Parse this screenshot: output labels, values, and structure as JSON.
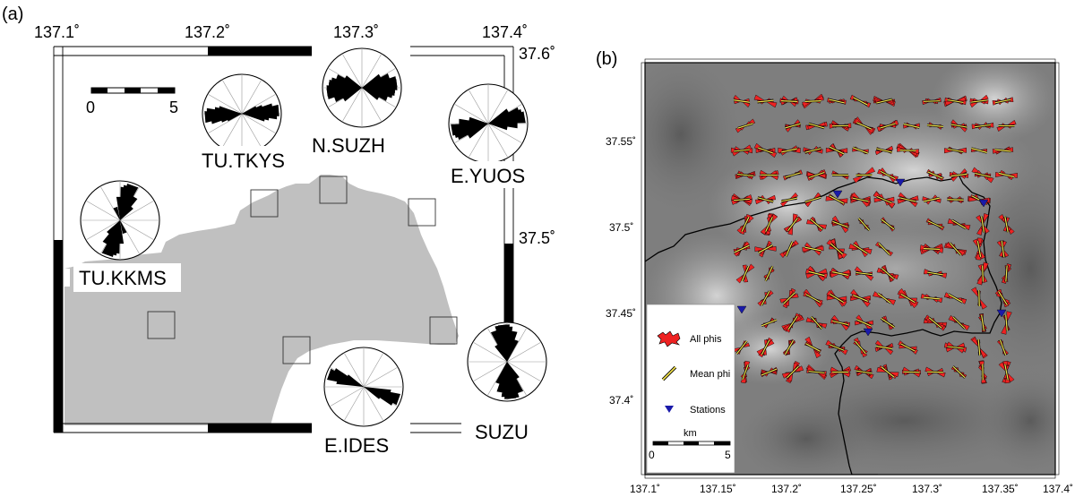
{
  "panel_a": {
    "label": "(a)",
    "lon_ticks": [
      "137.1˚",
      "137.2˚",
      "137.3˚",
      "137.4˚"
    ],
    "lat_ticks": [
      "37.6˚",
      "37.5˚"
    ],
    "scale": {
      "min": "0",
      "max": "5"
    },
    "stations": [
      {
        "name": "TU.TKYS",
        "dirs": [
          85,
          80,
          90,
          95,
          100,
          75,
          70
        ],
        "lens": [
          0.95,
          0.8,
          0.9,
          0.7,
          0.6,
          0.55,
          0.4
        ]
      },
      {
        "name": "N.SUZH",
        "dirs": [
          90,
          80,
          100,
          70,
          110,
          60,
          120,
          85,
          95
        ],
        "lens": [
          0.85,
          0.9,
          0.8,
          0.75,
          0.7,
          0.55,
          0.5,
          0.9,
          0.85
        ]
      },
      {
        "name": "E.YUOS",
        "dirs": [
          80,
          70,
          60,
          90,
          100,
          75
        ],
        "lens": [
          0.95,
          0.85,
          0.6,
          0.75,
          0.5,
          0.9
        ]
      },
      {
        "name": "TU.KKMS",
        "dirs": [
          20,
          10,
          30,
          0,
          40,
          160,
          15
        ],
        "lens": [
          0.95,
          0.85,
          0.7,
          0.6,
          0.45,
          0.35,
          0.9
        ]
      },
      {
        "name": "SUZU",
        "dirs": [
          170,
          0,
          10,
          160,
          180,
          20,
          150,
          175
        ],
        "lens": [
          0.95,
          0.9,
          0.8,
          0.85,
          0.9,
          0.6,
          0.5,
          0.95
        ]
      },
      {
        "name": "E.IDES",
        "dirs": [
          110,
          115,
          105,
          120
        ],
        "lens": [
          0.95,
          0.85,
          0.7,
          0.5
        ]
      }
    ]
  },
  "panel_b": {
    "label": "(b)",
    "lon_ticks": [
      "137.1˚",
      "137.15˚",
      "137.2˚",
      "137.25˚",
      "137.3˚",
      "137.35˚",
      "137.4˚"
    ],
    "lat_ticks": [
      "37.55˚",
      "37.5˚",
      "37.45˚",
      "37.4˚"
    ],
    "legend": {
      "all_phis": "All phis",
      "mean_phi": "Mean phi",
      "stations": "Stations",
      "scale_unit": "km",
      "scale_min": "0",
      "scale_max": "5"
    },
    "colors": {
      "rose": "#ee2222",
      "mean": "#f2e24a",
      "station": "#1a1aaa"
    }
  }
}
